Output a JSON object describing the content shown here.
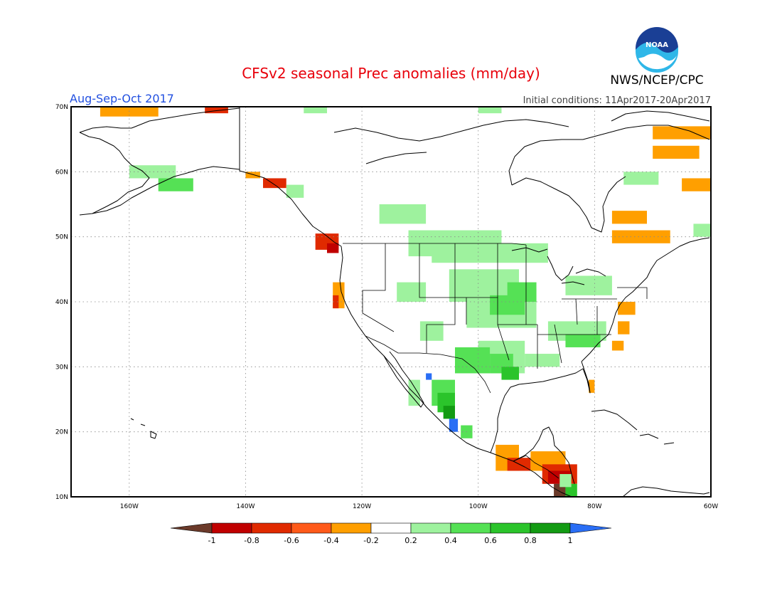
{
  "header": {
    "title": "CFSv2 seasonal Prec anomalies (mm/day)",
    "period": "Aug-Sep-Oct 2017",
    "organization": "NWS/NCEP/CPC",
    "logo_text": "NOAA",
    "initial_conditions": "Initial conditions: 11Apr2017-20Apr2017"
  },
  "map": {
    "lat_ticks": [
      "70N",
      "60N",
      "50N",
      "40N",
      "30N",
      "20N",
      "10N"
    ],
    "lon_ticks": [
      "160W",
      "140W",
      "120W",
      "100W",
      "80W",
      "60W"
    ],
    "lon_range": [
      -170,
      -60
    ],
    "lat_range": [
      10,
      70
    ]
  },
  "colorbar": {
    "labels": [
      "-1",
      "-0.8",
      "-0.6",
      "-0.4",
      "-0.2",
      "0.2",
      "0.4",
      "0.6",
      "0.8",
      "1"
    ],
    "colors": [
      "#6b3a2a",
      "#c00000",
      "#e02a00",
      "#ff5a1a",
      "#ff9f00",
      "#ffffff",
      "#9ef29e",
      "#55e155",
      "#2bc42b",
      "#139b13",
      "#2a6ef5"
    ]
  },
  "anomaly_palette": {
    "-4": "#6b3a2a",
    "-3": "#c00000",
    "-2": "#e02a00",
    "-1": "#ff9f00",
    "1": "#9ef29e",
    "2": "#55e155",
    "3": "#2bc42b",
    "4": "#139b13",
    "5": "#2a6ef5"
  }
}
